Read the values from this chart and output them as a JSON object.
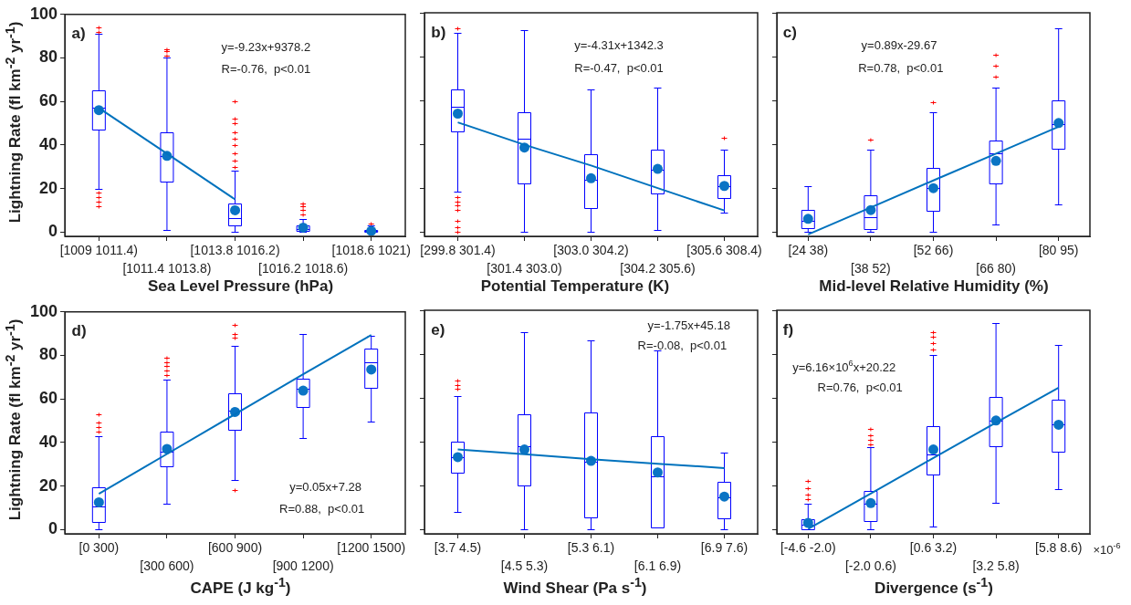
{
  "chart_data": [
    {
      "type": "box",
      "xlabel": "Sea Level Pressure (hPa)",
      "ylabel": "Lightning Rate (fl km$^{-2}$ yr$^{-1}$)",
      "categories": [
        "[1009 1011.4)",
        "[1011.4 1013.8)",
        "[1013.8 1016.2)",
        "[1016.2 1018.6)",
        "[1018.6 1021)"
      ],
      "ylim": [
        -2,
        100
      ],
      "yticks": [
        0,
        20,
        40,
        60,
        80,
        100
      ],
      "annotations": [
        "a)",
        "y=-9.23x+9378.2",
        "R=-0.76,  p<0.01"
      ],
      "series": [
        {
          "color": "#0000ff",
          "boxes": [
            {
              "low": 20,
              "q1": 47,
              "median": 57,
              "q3": 65,
              "high": 91,
              "mean": 56,
              "outliers": [
                92,
                94,
                18,
                16,
                14,
                12
              ]
            },
            {
              "low": 1,
              "q1": 23,
              "median": 35,
              "q3": 46,
              "high": 80,
              "mean": 35,
              "outliers": [
                81,
                83,
                84
              ]
            },
            {
              "low": 0,
              "q1": 3,
              "median": 6.5,
              "q3": 13,
              "high": 28,
              "mean": 10,
              "outliers": [
                30,
                33,
                36,
                40,
                43,
                46,
                50,
                52,
                60
              ]
            },
            {
              "low": 0,
              "q1": 0.5,
              "median": 1.5,
              "q3": 3,
              "high": 6,
              "mean": 2,
              "outliers": [
                8,
                10,
                12,
                13
              ]
            },
            {
              "low": 0,
              "q1": 0,
              "median": 0.5,
              "q3": 1,
              "high": 3,
              "mean": 0.5,
              "outliers": [
                4
              ]
            }
          ]
        },
        {
          "type": "line",
          "color": "#0072bd",
          "values": [
            57,
            36,
            15,
            null,
            null
          ]
        }
      ]
    },
    {
      "type": "box",
      "xlabel": "Potential Temperature (K)",
      "categories": [
        "[299.8 301.4)",
        "[301.4 303.0)",
        "[303.0 304.2)",
        "[304.2 305.6)",
        "[305.6 308.4)"
      ],
      "ylim": [
        -2,
        100
      ],
      "yticks": [
        0,
        20,
        40,
        60,
        80,
        100
      ],
      "tick_labels": "x",
      "annotations": [
        "b)",
        "y=-4.31x+1342.3",
        "R=-0.47,  p<0.01"
      ],
      "series": [
        {
          "color": "#0000ff",
          "boxes": [
            {
              "low": 18.6,
              "q1": 46,
              "median": 57,
              "q3": 65,
              "high": 91,
              "mean": 54,
              "outliers": [
                93,
                16,
                14,
                12,
                10,
                5,
                2,
                0
              ]
            },
            {
              "low": 0,
              "q1": 22,
              "median": 42.6,
              "q3": 54.5,
              "high": 92,
              "mean": 38.5
            },
            {
              "low": 0,
              "q1": 10.7,
              "median": 24,
              "q3": 35.5,
              "high": 65,
              "mean": 24.5
            },
            {
              "low": 1,
              "q1": 17.4,
              "median": 28.6,
              "q3": 37.6,
              "high": 66,
              "mean": 28.8
            },
            {
              "low": 9,
              "q1": 15.5,
              "median": 21,
              "q3": 25.8,
              "high": 37.6,
              "mean": 21,
              "outliers": [
                43
              ]
            }
          ]
        },
        {
          "type": "line",
          "color": "#0072bd",
          "values": [
            50,
            39.8,
            30.3,
            20,
            9.8
          ]
        }
      ]
    },
    {
      "type": "box",
      "xlabel": "Mid-level Relative Humidity (%)",
      "categories": [
        "[24 38)",
        "[38 52)",
        "[52 66)",
        "[66 80)",
        "[80 95)"
      ],
      "ylim": [
        -2,
        100
      ],
      "yticks": [
        0,
        20,
        40,
        60,
        80,
        100
      ],
      "tick_labels": "x",
      "annotations": [
        "c)",
        "y=0.89x-29.67",
        "R=0.78,  p<0.01"
      ],
      "series": [
        {
          "color": "#0000ff",
          "boxes": [
            {
              "low": 0,
              "q1": 1.6,
              "median": 5.2,
              "q3": 10,
              "high": 21,
              "mean": 6
            },
            {
              "low": 0,
              "q1": 1.3,
              "median": 6.8,
              "q3": 16.6,
              "high": 37.6,
              "mean": 10,
              "outliers": [
                42
              ]
            },
            {
              "low": 0,
              "q1": 9.6,
              "median": 20,
              "q3": 29.4,
              "high": 54.7,
              "mean": 20,
              "outliers": [
                59
              ]
            },
            {
              "low": 3.6,
              "q1": 22.3,
              "median": 36,
              "q3": 41.9,
              "high": 66,
              "mean": 32.4,
              "outliers": [
                71,
                76,
                81
              ]
            },
            {
              "low": 12.6,
              "q1": 38,
              "median": 49.4,
              "q3": 60,
              "high": 93,
              "mean": 49.7
            }
          ]
        },
        {
          "type": "line",
          "color": "#0072bd",
          "values": [
            -1.1,
            11.2,
            23.5,
            35.7,
            48
          ]
        }
      ]
    },
    {
      "type": "box",
      "xlabel": "CAPE (J kg$^{-1}$)",
      "ylabel": "Lightning Rate (fl km$^{-2}$ yr$^{-1}$)",
      "categories": [
        "[0 300)",
        "[300 600)",
        "[600 900)",
        "[900 1200)",
        "[1200 1500)"
      ],
      "ylim": [
        -2,
        100
      ],
      "yticks": [
        0,
        20,
        40,
        60,
        80,
        100
      ],
      "annotations": [
        "d)",
        "y=0.05x+7.28",
        "R=0.88,  p<0.01"
      ],
      "series": [
        {
          "color": "#0000ff",
          "boxes": [
            {
              "low": 0,
              "q1": 3.5,
              "median": 10.5,
              "q3": 19.3,
              "high": 43,
              "mean": 12.5,
              "outliers": [
                45,
                47,
                49,
                53
              ]
            },
            {
              "low": 12,
              "q1": 28.9,
              "median": 35.6,
              "q3": 44.8,
              "high": 68.8,
              "mean": 37,
              "outliers": [
                71,
                73,
                75,
                77,
                79
              ]
            },
            {
              "low": 22.8,
              "q1": 46,
              "median": 54.5,
              "q3": 62.5,
              "high": 84.6,
              "mean": 54,
              "outliers": [
                88,
                90,
                94,
                18
              ]
            },
            {
              "low": 42,
              "q1": 56.5,
              "median": 64.5,
              "q3": 69.3,
              "high": 90,
              "mean": 63.8
            },
            {
              "low": 49.5,
              "q1": 65.3,
              "median": 76.9,
              "q3": 83.3,
              "high": 89,
              "mean": 73.5
            }
          ]
        },
        {
          "type": "line",
          "color": "#0072bd",
          "values": [
            16.4,
            34.7,
            53,
            71.3,
            89.4
          ]
        }
      ]
    },
    {
      "type": "box",
      "xlabel": "Wind Shear (Pa s$^{-1}$)",
      "categories": [
        "[3.7 4.5)",
        "[4.5 5.3)",
        "[5.3 6.1)",
        "[6.1 6.9)",
        "[6.9 7.6)"
      ],
      "ylim": [
        -2,
        100
      ],
      "yticks": [
        0,
        20,
        40,
        60,
        80,
        100
      ],
      "tick_labels": "x",
      "annotations": [
        "e)",
        "y=-1.75x+45.18",
        "R=-0.08,  p<0.01"
      ],
      "series": [
        {
          "color": "#0000ff",
          "boxes": [
            {
              "low": 8,
              "q1": 25.9,
              "median": 32.8,
              "q3": 40,
              "high": 61,
              "mean": 33,
              "outliers": [
                64,
                66,
                68
              ]
            },
            {
              "low": 0,
              "q1": 20,
              "median": 38,
              "q3": 52.5,
              "high": 90,
              "mean": 36.5
            },
            {
              "low": 0,
              "q1": 5.6,
              "median": 31,
              "q3": 53.2,
              "high": 86.4,
              "mean": 31.3
            },
            {
              "low": 1,
              "q1": 1,
              "median": 24.4,
              "q3": 42.7,
              "high": 81.5,
              "mean": 26
            },
            {
              "low": 0,
              "q1": 5,
              "median": 14.8,
              "q3": 21.8,
              "high": 35.2,
              "mean": 15
            }
          ]
        },
        {
          "type": "line",
          "color": "#0072bd",
          "values": [
            36.5,
            34.3,
            32,
            30,
            28
          ]
        }
      ]
    },
    {
      "type": "box",
      "xlabel": "Divergence (s$^{-1}$)",
      "categories": [
        "[-4.6 -2.0)",
        "[-2.0 0.6)",
        "[0.6 3.2)",
        "[3.2 5.8)",
        "[5.8 8.6)"
      ],
      "ylim": [
        -2,
        100
      ],
      "yticks": [
        0,
        20,
        40,
        60,
        80,
        100
      ],
      "tick_labels": "x",
      "annotations": [
        "f)",
        "y=6.16×10$^{6}$x+20.22",
        "R=0.76,  p<0.01",
        "×10$^{-6}$"
      ],
      "series": [
        {
          "color": "#0000ff",
          "boxes": [
            {
              "low": 0,
              "q1": 0.2,
              "median": 2,
              "q3": 4.8,
              "high": 11.7,
              "mean": 3,
              "outliers": [
                14,
                16,
                19,
                22
              ]
            },
            {
              "low": 0,
              "q1": 3.9,
              "median": 11.7,
              "q3": 17.4,
              "high": 37.5,
              "mean": 12,
              "outliers": [
                39,
                41,
                43,
                46
              ]
            },
            {
              "low": 1.5,
              "q1": 25,
              "median": 34.4,
              "q3": 47.2,
              "high": 79.5,
              "mean": 36.5,
              "outliers": [
                82,
                85,
                88,
                90
              ]
            },
            {
              "low": 12.3,
              "q1": 38,
              "median": 49.8,
              "q3": 60.5,
              "high": 94.3,
              "mean": 49.7
            },
            {
              "low": 18.2,
              "q1": 35.6,
              "median": 47.8,
              "q3": 59,
              "high": 84.3,
              "mean": 47.8
            }
          ]
        },
        {
          "type": "line",
          "color": "#0072bd",
          "values": [
            0.2,
            16.4,
            32.6,
            48.7,
            64.7
          ]
        }
      ]
    }
  ]
}
